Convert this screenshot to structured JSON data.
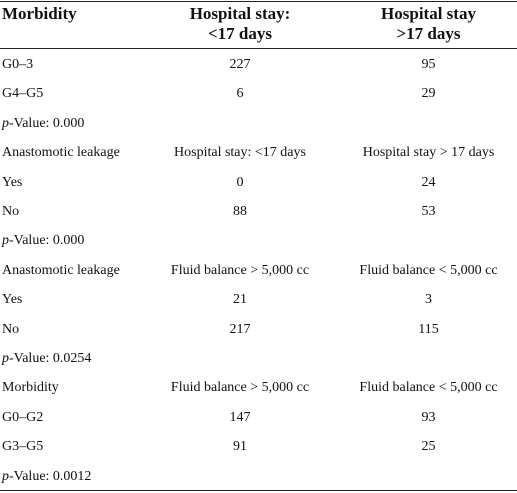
{
  "table": {
    "header": [
      [
        "Morbidity"
      ],
      [
        "Hospital stay:",
        "<17 days"
      ],
      [
        "Hospital stay",
        ">17 days"
      ]
    ],
    "rows": [
      [
        "G0–3",
        227,
        95
      ],
      [
        "G4–G5",
        6,
        29
      ],
      [
        [
          "p",
          "-Value: 0.000"
        ]
      ],
      [
        "Anastomotic leakage",
        "Hospital stay: <17 days",
        "Hospital stay > 17 days"
      ],
      [
        "Yes",
        0,
        24
      ],
      [
        "No",
        88,
        53
      ],
      [
        [
          "p",
          "-Value: 0.000"
        ]
      ],
      [
        "Anastomotic leakage",
        "Fluid balance > 5,000 cc",
        "Fluid balance < 5,000 cc"
      ],
      [
        "Yes",
        21,
        3
      ],
      [
        "No",
        217,
        115
      ],
      [
        [
          "p",
          "-Value: 0.0254"
        ]
      ],
      [
        "Morbidity",
        "Fluid balance > 5,000 cc",
        "Fluid balance < 5,000 cc"
      ],
      [
        "G0–G2",
        147,
        93
      ],
      [
        "G3–G5",
        91,
        25
      ],
      [
        [
          "p",
          "-Value: 0.0012"
        ]
      ]
    ]
  }
}
